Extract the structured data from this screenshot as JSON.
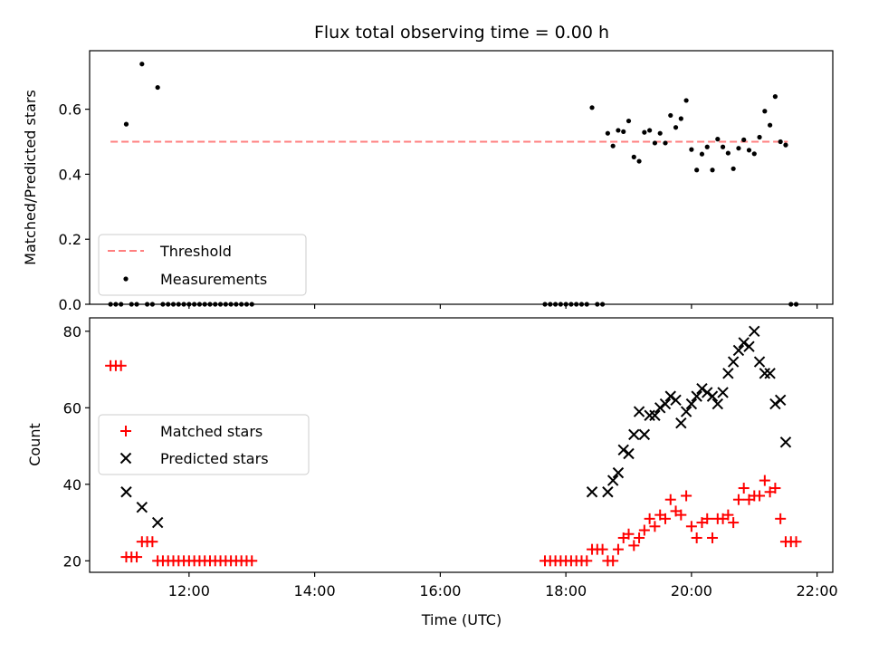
{
  "chart_data": [
    {
      "type": "scatter",
      "title": "Flux total observing time = 0.00 h",
      "xlabel": "",
      "ylabel": "Matched/Predicted stars",
      "xlim": [
        "10:25",
        "22:15"
      ],
      "ylim": [
        0,
        0.78
      ],
      "yticks": [
        0.0,
        0.2,
        0.4,
        0.6
      ],
      "ytick_labels": [
        "0.0",
        "0.2",
        "0.4",
        "0.6"
      ],
      "xticks": [
        "12:00",
        "14:00",
        "16:00",
        "18:00",
        "20:00",
        "22:00"
      ],
      "xtick_labels_shown": false,
      "legend": {
        "placement": "lower-left"
      },
      "series": [
        {
          "name": "Threshold",
          "style": "dashed-line",
          "color": "#ff7f7f",
          "points": [
            {
              "x": "10:45",
              "y": 0.5
            },
            {
              "x": "21:32",
              "y": 0.5
            }
          ]
        },
        {
          "name": "Measurements",
          "style": "dot",
          "color": "#000000",
          "points": [
            {
              "x": "10:45",
              "y": 0.0
            },
            {
              "x": "10:50",
              "y": 0.0
            },
            {
              "x": "10:55",
              "y": 0.0
            },
            {
              "x": "11:00",
              "y": 0.554
            },
            {
              "x": "11:05",
              "y": 0.0
            },
            {
              "x": "11:10",
              "y": 0.0
            },
            {
              "x": "11:15",
              "y": 0.739
            },
            {
              "x": "11:20",
              "y": 0.0
            },
            {
              "x": "11:25",
              "y": 0.0
            },
            {
              "x": "11:30",
              "y": 0.667
            },
            {
              "x": "11:35",
              "y": 0.0
            },
            {
              "x": "11:40",
              "y": 0.0
            },
            {
              "x": "11:45",
              "y": 0.0
            },
            {
              "x": "11:50",
              "y": 0.0
            },
            {
              "x": "11:55",
              "y": 0.0
            },
            {
              "x": "12:00",
              "y": 0.0
            },
            {
              "x": "12:05",
              "y": 0.0
            },
            {
              "x": "12:10",
              "y": 0.0
            },
            {
              "x": "12:15",
              "y": 0.0
            },
            {
              "x": "12:20",
              "y": 0.0
            },
            {
              "x": "12:25",
              "y": 0.0
            },
            {
              "x": "12:30",
              "y": 0.0
            },
            {
              "x": "12:35",
              "y": 0.0
            },
            {
              "x": "12:40",
              "y": 0.0
            },
            {
              "x": "12:45",
              "y": 0.0
            },
            {
              "x": "12:50",
              "y": 0.0
            },
            {
              "x": "12:55",
              "y": 0.0
            },
            {
              "x": "13:00",
              "y": 0.0
            },
            {
              "x": "17:40",
              "y": 0.0
            },
            {
              "x": "17:45",
              "y": 0.0
            },
            {
              "x": "17:50",
              "y": 0.0
            },
            {
              "x": "17:55",
              "y": 0.0
            },
            {
              "x": "18:00",
              "y": 0.0
            },
            {
              "x": "18:05",
              "y": 0.0
            },
            {
              "x": "18:10",
              "y": 0.0
            },
            {
              "x": "18:15",
              "y": 0.0
            },
            {
              "x": "18:20",
              "y": 0.0
            },
            {
              "x": "18:25",
              "y": 0.605
            },
            {
              "x": "18:30",
              "y": 0.0
            },
            {
              "x": "18:35",
              "y": 0.0
            },
            {
              "x": "18:40",
              "y": 0.526
            },
            {
              "x": "18:45",
              "y": 0.487
            },
            {
              "x": "18:50",
              "y": 0.535
            },
            {
              "x": "18:55",
              "y": 0.531
            },
            {
              "x": "19:00",
              "y": 0.564
            },
            {
              "x": "19:05",
              "y": 0.453
            },
            {
              "x": "19:10",
              "y": 0.44
            },
            {
              "x": "19:15",
              "y": 0.529
            },
            {
              "x": "19:20",
              "y": 0.535
            },
            {
              "x": "19:25",
              "y": 0.496
            },
            {
              "x": "19:30",
              "y": 0.526
            },
            {
              "x": "19:35",
              "y": 0.496
            },
            {
              "x": "19:40",
              "y": 0.581
            },
            {
              "x": "19:45",
              "y": 0.544
            },
            {
              "x": "19:50",
              "y": 0.571
            },
            {
              "x": "19:55",
              "y": 0.627
            },
            {
              "x": "20:00",
              "y": 0.476
            },
            {
              "x": "20:05",
              "y": 0.413
            },
            {
              "x": "20:10",
              "y": 0.462
            },
            {
              "x": "20:15",
              "y": 0.484
            },
            {
              "x": "20:20",
              "y": 0.413
            },
            {
              "x": "20:25",
              "y": 0.508
            },
            {
              "x": "20:30",
              "y": 0.484
            },
            {
              "x": "20:35",
              "y": 0.465
            },
            {
              "x": "20:40",
              "y": 0.417
            },
            {
              "x": "20:45",
              "y": 0.48
            },
            {
              "x": "20:50",
              "y": 0.506
            },
            {
              "x": "20:55",
              "y": 0.474
            },
            {
              "x": "21:00",
              "y": 0.463
            },
            {
              "x": "21:05",
              "y": 0.514
            },
            {
              "x": "21:10",
              "y": 0.594
            },
            {
              "x": "21:15",
              "y": 0.551
            },
            {
              "x": "21:20",
              "y": 0.639
            },
            {
              "x": "21:25",
              "y": 0.5
            },
            {
              "x": "21:30",
              "y": 0.49
            },
            {
              "x": "21:35",
              "y": 0.0
            },
            {
              "x": "21:40",
              "y": 0.0
            }
          ]
        }
      ]
    },
    {
      "type": "scatter",
      "title": "",
      "xlabel": "Time (UTC)",
      "ylabel": "Count",
      "xlim": [
        "10:25",
        "22:15"
      ],
      "ylim": [
        17,
        83.5
      ],
      "yticks": [
        20,
        40,
        60,
        80
      ],
      "ytick_labels": [
        "20",
        "40",
        "60",
        "80"
      ],
      "xticks": [
        "12:00",
        "14:00",
        "16:00",
        "18:00",
        "20:00",
        "22:00"
      ],
      "xtick_labels": [
        "12:00",
        "14:00",
        "16:00",
        "18:00",
        "20:00",
        "22:00"
      ],
      "legend": {
        "placement": "center-left"
      },
      "series": [
        {
          "name": "Matched stars",
          "marker": "plus",
          "color": "#ff0000",
          "points": [
            {
              "x": "10:45",
              "y": 71
            },
            {
              "x": "10:50",
              "y": 71
            },
            {
              "x": "10:55",
              "y": 71
            },
            {
              "x": "11:00",
              "y": 21
            },
            {
              "x": "11:05",
              "y": 21
            },
            {
              "x": "11:10",
              "y": 21
            },
            {
              "x": "11:15",
              "y": 25
            },
            {
              "x": "11:20",
              "y": 25
            },
            {
              "x": "11:25",
              "y": 25
            },
            {
              "x": "11:30",
              "y": 20
            },
            {
              "x": "11:35",
              "y": 20
            },
            {
              "x": "11:40",
              "y": 20
            },
            {
              "x": "11:45",
              "y": 20
            },
            {
              "x": "11:50",
              "y": 20
            },
            {
              "x": "11:55",
              "y": 20
            },
            {
              "x": "12:00",
              "y": 20
            },
            {
              "x": "12:05",
              "y": 20
            },
            {
              "x": "12:10",
              "y": 20
            },
            {
              "x": "12:15",
              "y": 20
            },
            {
              "x": "12:20",
              "y": 20
            },
            {
              "x": "12:25",
              "y": 20
            },
            {
              "x": "12:30",
              "y": 20
            },
            {
              "x": "12:35",
              "y": 20
            },
            {
              "x": "12:40",
              "y": 20
            },
            {
              "x": "12:45",
              "y": 20
            },
            {
              "x": "12:50",
              "y": 20
            },
            {
              "x": "12:55",
              "y": 20
            },
            {
              "x": "13:00",
              "y": 20
            },
            {
              "x": "17:40",
              "y": 20
            },
            {
              "x": "17:45",
              "y": 20
            },
            {
              "x": "17:50",
              "y": 20
            },
            {
              "x": "17:55",
              "y": 20
            },
            {
              "x": "18:00",
              "y": 20
            },
            {
              "x": "18:05",
              "y": 20
            },
            {
              "x": "18:10",
              "y": 20
            },
            {
              "x": "18:15",
              "y": 20
            },
            {
              "x": "18:20",
              "y": 20
            },
            {
              "x": "18:25",
              "y": 23
            },
            {
              "x": "18:30",
              "y": 23
            },
            {
              "x": "18:35",
              "y": 23
            },
            {
              "x": "18:40",
              "y": 20
            },
            {
              "x": "18:45",
              "y": 20
            },
            {
              "x": "18:50",
              "y": 23
            },
            {
              "x": "18:55",
              "y": 26
            },
            {
              "x": "19:00",
              "y": 27
            },
            {
              "x": "19:05",
              "y": 24
            },
            {
              "x": "19:10",
              "y": 26
            },
            {
              "x": "19:15",
              "y": 28
            },
            {
              "x": "19:20",
              "y": 31
            },
            {
              "x": "19:25",
              "y": 29
            },
            {
              "x": "19:30",
              "y": 32
            },
            {
              "x": "19:35",
              "y": 31
            },
            {
              "x": "19:40",
              "y": 36
            },
            {
              "x": "19:45",
              "y": 33
            },
            {
              "x": "19:50",
              "y": 32
            },
            {
              "x": "19:55",
              "y": 37
            },
            {
              "x": "20:00",
              "y": 29
            },
            {
              "x": "20:05",
              "y": 26
            },
            {
              "x": "20:10",
              "y": 30
            },
            {
              "x": "20:15",
              "y": 31
            },
            {
              "x": "20:20",
              "y": 26
            },
            {
              "x": "20:25",
              "y": 31
            },
            {
              "x": "20:30",
              "y": 31
            },
            {
              "x": "20:35",
              "y": 32
            },
            {
              "x": "20:40",
              "y": 30
            },
            {
              "x": "20:45",
              "y": 36
            },
            {
              "x": "20:50",
              "y": 39
            },
            {
              "x": "20:55",
              "y": 36
            },
            {
              "x": "21:00",
              "y": 37
            },
            {
              "x": "21:05",
              "y": 37
            },
            {
              "x": "21:10",
              "y": 41
            },
            {
              "x": "21:15",
              "y": 38
            },
            {
              "x": "21:20",
              "y": 39
            },
            {
              "x": "21:25",
              "y": 31
            },
            {
              "x": "21:30",
              "y": 25
            },
            {
              "x": "21:35",
              "y": 25
            },
            {
              "x": "21:40",
              "y": 25
            }
          ]
        },
        {
          "name": "Predicted stars",
          "marker": "x",
          "color": "#000000",
          "points": [
            {
              "x": "11:00",
              "y": 38
            },
            {
              "x": "11:15",
              "y": 34
            },
            {
              "x": "11:30",
              "y": 30
            },
            {
              "x": "18:25",
              "y": 38
            },
            {
              "x": "18:40",
              "y": 38
            },
            {
              "x": "18:45",
              "y": 41
            },
            {
              "x": "18:50",
              "y": 43
            },
            {
              "x": "18:55",
              "y": 49
            },
            {
              "x": "19:00",
              "y": 48
            },
            {
              "x": "19:05",
              "y": 53
            },
            {
              "x": "19:10",
              "y": 59
            },
            {
              "x": "19:15",
              "y": 53
            },
            {
              "x": "19:20",
              "y": 58
            },
            {
              "x": "19:25",
              "y": 58
            },
            {
              "x": "19:30",
              "y": 60
            },
            {
              "x": "19:35",
              "y": 61
            },
            {
              "x": "19:40",
              "y": 63
            },
            {
              "x": "19:45",
              "y": 62
            },
            {
              "x": "19:50",
              "y": 56
            },
            {
              "x": "19:55",
              "y": 59
            },
            {
              "x": "20:00",
              "y": 61
            },
            {
              "x": "20:05",
              "y": 63
            },
            {
              "x": "20:10",
              "y": 65
            },
            {
              "x": "20:15",
              "y": 64
            },
            {
              "x": "20:20",
              "y": 63
            },
            {
              "x": "20:25",
              "y": 61
            },
            {
              "x": "20:30",
              "y": 64
            },
            {
              "x": "20:35",
              "y": 69
            },
            {
              "x": "20:40",
              "y": 72
            },
            {
              "x": "20:45",
              "y": 75
            },
            {
              "x": "20:50",
              "y": 77
            },
            {
              "x": "20:55",
              "y": 76
            },
            {
              "x": "21:00",
              "y": 80
            },
            {
              "x": "21:05",
              "y": 72
            },
            {
              "x": "21:10",
              "y": 69
            },
            {
              "x": "21:15",
              "y": 69
            },
            {
              "x": "21:20",
              "y": 61
            },
            {
              "x": "21:25",
              "y": 62
            },
            {
              "x": "21:30",
              "y": 51
            }
          ]
        }
      ]
    }
  ]
}
